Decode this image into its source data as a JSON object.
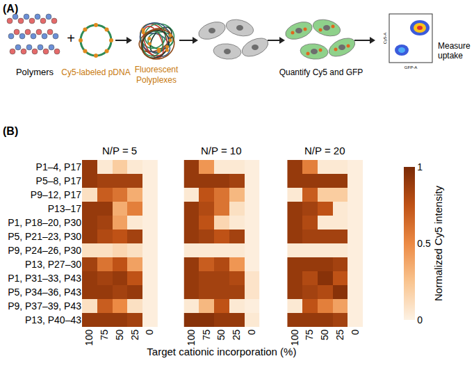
{
  "panel_a": {
    "label": "(A)",
    "polymers": "Polymers",
    "plus": "+",
    "pdna": "Cy5-labeled pDNA",
    "polyplexes": [
      "Fluorescent",
      "Polyplexes"
    ],
    "quantify": "Quantify Cy5 and GFP",
    "measure": [
      "Measure",
      "uptake"
    ],
    "flow_axes": {
      "x": "GFP-A",
      "y": "Cy5-A"
    }
  },
  "panel_b_label": "(B)",
  "chart_data": [
    {
      "type": "heatmap",
      "title": "N/P = 5",
      "categories": [
        100,
        75,
        50,
        25,
        0
      ],
      "rows": [
        "P1–4, P17",
        "P5–8, P17",
        "P9–12, P17",
        "P13–17",
        "P1, P18–20, P30",
        "P5, P21–23, P30",
        "P9, P24–26, P30",
        "P13, P27–30",
        "P1, P31–33, P43",
        "P5, P34–36, P43",
        "P9, P37–39, P43",
        "P13, P40–43"
      ],
      "cells": [
        [
          0.9,
          0.05,
          0.2,
          0.05,
          0.02
        ],
        [
          0.9,
          0.85,
          0.85,
          0.85,
          0.02
        ],
        [
          0.1,
          0.7,
          0.6,
          0.35,
          0.02
        ],
        [
          0.9,
          0.9,
          0.35,
          0.55,
          0.02
        ],
        [
          0.9,
          0.85,
          0.4,
          0.05,
          0.02
        ],
        [
          0.9,
          0.8,
          0.75,
          0.85,
          0.02
        ],
        [
          0.1,
          0.1,
          0.15,
          0.1,
          0.02
        ],
        [
          0.85,
          0.6,
          0.75,
          0.4,
          0.02
        ],
        [
          0.9,
          0.85,
          0.9,
          0.75,
          0.02
        ],
        [
          0.9,
          0.9,
          0.85,
          0.9,
          0.02
        ],
        [
          0.1,
          0.7,
          0.5,
          0.1,
          0.02
        ],
        [
          0.9,
          0.9,
          0.9,
          0.85,
          0.02
        ]
      ]
    },
    {
      "type": "heatmap",
      "title": "N/P = 10",
      "categories": [
        100,
        75,
        50,
        25,
        0
      ],
      "xlabel": "Target cationic incorporation (%)",
      "tick_labels": "x",
      "rows": [
        "P1–4, P17",
        "P5–8, P17",
        "P9–12, P17",
        "P13–17",
        "P1, P18–20, P30",
        "P5, P21–23, P30",
        "P9, P24–26, P30",
        "P13, P27–30",
        "P1, P31–33, P43",
        "P5, P34–36, P43",
        "P9, P37–39, P43",
        "P13, P40–43"
      ],
      "cells": [
        [
          0.9,
          0.45,
          0.05,
          0.05,
          0.02
        ],
        [
          0.9,
          0.9,
          0.9,
          0.85,
          0.02
        ],
        [
          0.05,
          0.75,
          0.6,
          0.3,
          0.02
        ],
        [
          0.9,
          0.8,
          0.6,
          0.1,
          0.02
        ],
        [
          0.9,
          0.75,
          0.15,
          0.05,
          0.02
        ],
        [
          0.9,
          0.85,
          0.75,
          0.85,
          0.02
        ],
        [
          0.05,
          0.05,
          0.05,
          0.05,
          0.02
        ],
        [
          0.9,
          0.7,
          0.8,
          0.45,
          0.02
        ],
        [
          0.9,
          0.85,
          0.85,
          0.8,
          0.08
        ],
        [
          0.9,
          0.85,
          0.85,
          0.85,
          0.08
        ],
        [
          0.05,
          0.3,
          0.75,
          0.05,
          0.02
        ],
        [
          0.95,
          0.95,
          0.9,
          0.9,
          0.05
        ]
      ]
    },
    {
      "type": "heatmap",
      "title": "N/P = 20",
      "categories": [
        100,
        75,
        50,
        25,
        0
      ],
      "tick_labels": "x",
      "rows": [
        "P1–4, P17",
        "P5–8, P17",
        "P9–12, P17",
        "P13–17",
        "P1, P18–20, P30",
        "P5, P21–23, P30",
        "P9, P24–26, P30",
        "P13, P27–30",
        "P1, P31–33, P43",
        "P5, P34–36, P43",
        "P9, P37–39, P43",
        "P13, P40–43"
      ],
      "cells": [
        [
          0.9,
          0.55,
          0.05,
          0.05,
          0.02
        ],
        [
          0.9,
          0.9,
          0.9,
          0.9,
          0.02
        ],
        [
          0.05,
          0.7,
          0.2,
          0.2,
          0.02
        ],
        [
          0.9,
          0.85,
          0.75,
          0.05,
          0.02
        ],
        [
          0.9,
          0.8,
          0.05,
          0.05,
          0.02
        ],
        [
          0.9,
          0.85,
          0.85,
          0.85,
          0.02
        ],
        [
          0.05,
          0.05,
          0.05,
          0.05,
          0.02
        ],
        [
          0.9,
          0.9,
          0.9,
          0.85,
          0.02
        ],
        [
          0.9,
          0.8,
          0.95,
          0.75,
          0.02
        ],
        [
          0.9,
          0.85,
          0.8,
          0.95,
          0.02
        ],
        [
          0.05,
          0.75,
          0.55,
          0.4,
          0.02
        ],
        [
          0.9,
          0.9,
          0.9,
          0.85,
          0.02
        ]
      ],
      "colorbar": {
        "title": "Normalized Cy5 intensity",
        "range": [
          0,
          1
        ],
        "ticks": [
          0,
          0.5,
          1
        ]
      }
    }
  ]
}
